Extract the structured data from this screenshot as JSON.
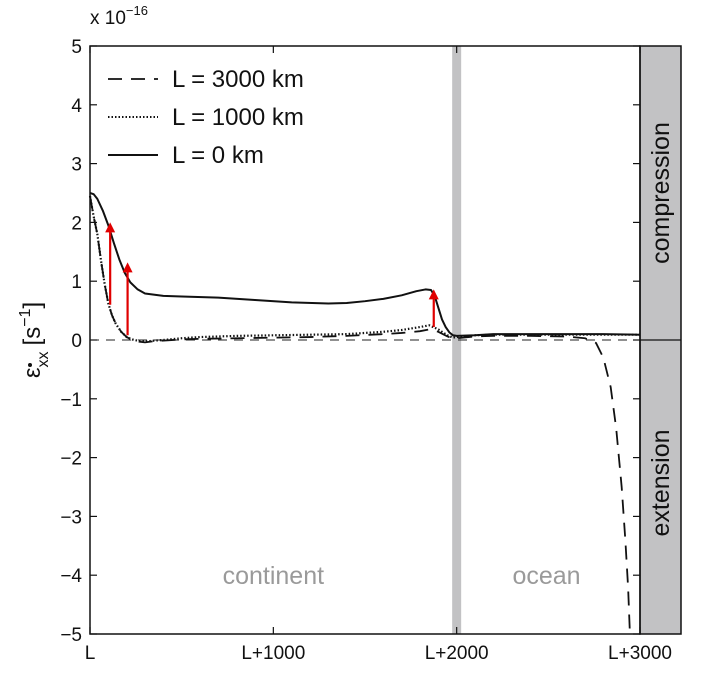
{
  "chart_data": {
    "type": "line",
    "ylabel": {
      "symbol": "ε",
      "subscript": "xx",
      "unit_open": "[s",
      "unit_exp": "−1",
      "unit_close": "]"
    },
    "y_multiplier": {
      "base": "x 10",
      "exponent": "−16"
    },
    "xlim": [
      0,
      3000
    ],
    "ylim": [
      -5,
      5
    ],
    "x_ticks": [
      {
        "value": 0,
        "label": "L"
      },
      {
        "value": 1000,
        "label": "L+1000"
      },
      {
        "value": 2000,
        "label": "L+2000"
      },
      {
        "value": 3000,
        "label": "L+3000"
      }
    ],
    "y_ticks": [
      {
        "value": 5,
        "label": "5"
      },
      {
        "value": 4,
        "label": "4"
      },
      {
        "value": 3,
        "label": "3"
      },
      {
        "value": 2,
        "label": "2"
      },
      {
        "value": 1,
        "label": "1"
      },
      {
        "value": 0,
        "label": "0"
      },
      {
        "value": -1,
        "label": "−1"
      },
      {
        "value": -2,
        "label": "−2"
      },
      {
        "value": -3,
        "label": "−3"
      },
      {
        "value": -4,
        "label": "−4"
      },
      {
        "value": -5,
        "label": "−5"
      }
    ],
    "legend": [
      {
        "label": "L = 3000 km",
        "style": "dashed"
      },
      {
        "label": "L = 1000 km",
        "style": "dotted"
      },
      {
        "label": "L = 0 km",
        "style": "solid"
      }
    ],
    "series": [
      {
        "name": "L = 3000 km",
        "style": "dashed",
        "color": "#111111",
        "points": [
          [
            0,
            2.45
          ],
          [
            20,
            2.1
          ],
          [
            40,
            1.8
          ],
          [
            60,
            1.35
          ],
          [
            80,
            0.95
          ],
          [
            100,
            0.62
          ],
          [
            120,
            0.42
          ],
          [
            140,
            0.28
          ],
          [
            170,
            0.14
          ],
          [
            200,
            0.05
          ],
          [
            230,
            0.0
          ],
          [
            270,
            -0.03
          ],
          [
            300,
            -0.04
          ],
          [
            350,
            -0.02
          ],
          [
            400,
            -0.01
          ],
          [
            500,
            0.01
          ],
          [
            600,
            0.02
          ],
          [
            800,
            0.03
          ],
          [
            1000,
            0.04
          ],
          [
            1200,
            0.05
          ],
          [
            1400,
            0.07
          ],
          [
            1600,
            0.1
          ],
          [
            1700,
            0.12
          ],
          [
            1800,
            0.15
          ],
          [
            1850,
            0.18
          ],
          [
            1900,
            0.14
          ],
          [
            1950,
            0.06
          ],
          [
            1980,
            0.02
          ],
          [
            2000,
            0.03
          ],
          [
            2100,
            0.06
          ],
          [
            2200,
            0.07
          ],
          [
            2400,
            0.07
          ],
          [
            2600,
            0.06
          ],
          [
            2700,
            0.03
          ],
          [
            2760,
            -0.05
          ],
          [
            2800,
            -0.3
          ],
          [
            2840,
            -0.8
          ],
          [
            2870,
            -1.5
          ],
          [
            2900,
            -2.5
          ],
          [
            2920,
            -3.4
          ],
          [
            2935,
            -4.2
          ],
          [
            2945,
            -5.0
          ]
        ]
      },
      {
        "name": "L = 1000 km",
        "style": "dotted",
        "color": "#111111",
        "points": [
          [
            0,
            2.45
          ],
          [
            20,
            2.1
          ],
          [
            40,
            1.8
          ],
          [
            60,
            1.35
          ],
          [
            80,
            0.95
          ],
          [
            100,
            0.62
          ],
          [
            120,
            0.42
          ],
          [
            140,
            0.28
          ],
          [
            170,
            0.14
          ],
          [
            200,
            0.05
          ],
          [
            230,
            0.01
          ],
          [
            270,
            -0.02
          ],
          [
            300,
            -0.03
          ],
          [
            350,
            -0.01
          ],
          [
            400,
            0.0
          ],
          [
            500,
            0.03
          ],
          [
            600,
            0.05
          ],
          [
            800,
            0.07
          ],
          [
            1000,
            0.08
          ],
          [
            1200,
            0.09
          ],
          [
            1400,
            0.1
          ],
          [
            1600,
            0.14
          ],
          [
            1700,
            0.17
          ],
          [
            1800,
            0.22
          ],
          [
            1850,
            0.25
          ],
          [
            1900,
            0.18
          ],
          [
            1950,
            0.08
          ],
          [
            1980,
            0.04
          ],
          [
            2000,
            0.05
          ],
          [
            2100,
            0.08
          ],
          [
            2200,
            0.09
          ],
          [
            2400,
            0.09
          ],
          [
            2600,
            0.09
          ],
          [
            2800,
            0.09
          ],
          [
            3000,
            0.09
          ]
        ]
      },
      {
        "name": "L = 0 km",
        "style": "solid",
        "color": "#111111",
        "points": [
          [
            0,
            2.5
          ],
          [
            20,
            2.48
          ],
          [
            40,
            2.4
          ],
          [
            70,
            2.2
          ],
          [
            100,
            1.95
          ],
          [
            130,
            1.65
          ],
          [
            160,
            1.37
          ],
          [
            190,
            1.14
          ],
          [
            220,
            0.98
          ],
          [
            260,
            0.86
          ],
          [
            300,
            0.79
          ],
          [
            400,
            0.75
          ],
          [
            500,
            0.74
          ],
          [
            700,
            0.72
          ],
          [
            900,
            0.68
          ],
          [
            1100,
            0.64
          ],
          [
            1300,
            0.62
          ],
          [
            1400,
            0.63
          ],
          [
            1500,
            0.66
          ],
          [
            1600,
            0.7
          ],
          [
            1700,
            0.76
          ],
          [
            1780,
            0.83
          ],
          [
            1830,
            0.86
          ],
          [
            1860,
            0.85
          ],
          [
            1880,
            0.75
          ],
          [
            1900,
            0.55
          ],
          [
            1920,
            0.35
          ],
          [
            1940,
            0.22
          ],
          [
            1960,
            0.13
          ],
          [
            1980,
            0.08
          ],
          [
            2000,
            0.07
          ],
          [
            2100,
            0.08
          ],
          [
            2200,
            0.1
          ],
          [
            2400,
            0.1
          ],
          [
            2600,
            0.1
          ],
          [
            2800,
            0.1
          ],
          [
            3000,
            0.09
          ]
        ]
      }
    ],
    "arrows": [
      {
        "x": 110,
        "from": 0.6,
        "to": 2.0
      },
      {
        "x": 205,
        "from": 0.08,
        "to": 1.32
      },
      {
        "x": 1875,
        "from": 0.22,
        "to": 0.86
      }
    ],
    "boundary_x": 2000,
    "regions": [
      {
        "label": "continent",
        "x": 1000,
        "y": -4.0
      },
      {
        "label": "ocean",
        "x": 2490,
        "y": -4.0
      }
    ],
    "side_labels": {
      "top": "compression",
      "bottom": "extension"
    },
    "colors": {
      "arrow": "#e00000",
      "band": "#c2c2c4",
      "region_text": "#9a9a9a",
      "line": "#111111"
    }
  }
}
